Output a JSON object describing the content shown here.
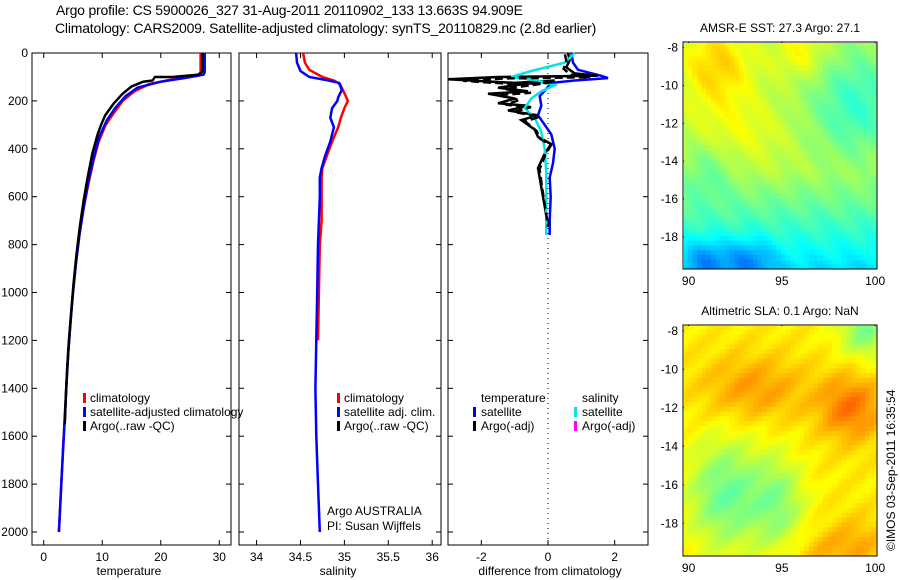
{
  "header": {
    "line1": "Argo profile: CS 5900026_327 31-Aug-2011 20110902_133 13.663S 94.909E",
    "line2": "Climatology: CARS2009. Satellite-adjusted climatology: synTS_20110829.nc (2.8d earlier)"
  },
  "stamp": "©IMOS 03-Sep-2011 16:35:54",
  "colors": {
    "climatology": "#ff0000",
    "satellite": "#0000ff",
    "argo": "#000000",
    "salinity_satellite": "#00e5e5",
    "salinity_argo": "#ff00ff"
  },
  "chart_data": [
    {
      "type": "line",
      "name": "temperature-profile",
      "xlabel": "temperature",
      "ylabel": "",
      "xlim": [
        -2,
        32
      ],
      "ylim": [
        2050,
        0
      ],
      "xticks": [
        0,
        10,
        20,
        30
      ],
      "yticks": [
        0,
        200,
        400,
        600,
        800,
        1000,
        1200,
        1400,
        1600,
        1800,
        2000
      ],
      "legend": {
        "position": "lower-middle",
        "entries": [
          "climatology",
          "satellite-adjusted climatology",
          "Argo(..raw -QC)"
        ]
      },
      "series": [
        {
          "name": "climatology",
          "color_key": "climatology",
          "points": [
            [
              26.8,
              0
            ],
            [
              26.8,
              80
            ],
            [
              26.2,
              95
            ],
            [
              22,
              110
            ],
            [
              18,
              130
            ],
            [
              15.5,
              160
            ],
            [
              13.5,
              200
            ],
            [
              12,
              250
            ],
            [
              10.6,
              300
            ],
            [
              9.4,
              370
            ],
            [
              8.5,
              450
            ],
            [
              7.6,
              550
            ],
            [
              6.8,
              650
            ],
            [
              6.1,
              760
            ],
            [
              5.5,
              880
            ],
            [
              5,
              1000
            ],
            [
              4.6,
              1120
            ],
            [
              4.2,
              1250
            ],
            [
              3.9,
              1380
            ],
            [
              3.6,
              1520
            ],
            [
              3.3,
              1660
            ],
            [
              3.0,
              1800
            ],
            [
              2.8,
              1900
            ],
            [
              2.6,
              2000
            ]
          ]
        },
        {
          "name": "satellite-adjusted climatology",
          "color_key": "satellite",
          "points": [
            [
              27.5,
              0
            ],
            [
              27.5,
              80
            ],
            [
              27.3,
              90
            ],
            [
              24,
              105
            ],
            [
              20,
              120
            ],
            [
              16,
              145
            ],
            [
              14,
              180
            ],
            [
              12.2,
              230
            ],
            [
              10.8,
              280
            ],
            [
              9.5,
              350
            ],
            [
              8.5,
              440
            ],
            [
              7.6,
              540
            ],
            [
              6.8,
              650
            ],
            [
              6.1,
              760
            ],
            [
              5.5,
              880
            ],
            [
              5,
              1000
            ],
            [
              4.6,
              1120
            ],
            [
              4.2,
              1250
            ],
            [
              3.9,
              1380
            ],
            [
              3.6,
              1520
            ],
            [
              3.3,
              1660
            ],
            [
              3.0,
              1800
            ],
            [
              2.8,
              1900
            ],
            [
              2.6,
              2000
            ]
          ]
        },
        {
          "name": "Argo(..raw -QC)",
          "color_key": "argo",
          "points": [
            [
              27.1,
              0
            ],
            [
              27.1,
              78
            ],
            [
              26.5,
              90
            ],
            [
              22,
              100
            ],
            [
              19,
              100
            ],
            [
              18.6,
              115
            ],
            [
              17,
              120
            ],
            [
              15,
              140
            ],
            [
              13.5,
              170
            ],
            [
              12,
              210
            ],
            [
              10.5,
              260
            ],
            [
              9.8,
              300
            ],
            [
              9.2,
              340
            ],
            [
              8.3,
              420
            ],
            [
              7.5,
              520
            ],
            [
              6.8,
              620
            ],
            [
              6.2,
              720
            ],
            [
              5.6,
              840
            ],
            [
              5.1,
              960
            ],
            [
              4.7,
              1080
            ],
            [
              4.3,
              1200
            ],
            [
              4,
              1320
            ],
            [
              3.8,
              1430
            ],
            [
              3.6,
              1550
            ]
          ]
        }
      ]
    },
    {
      "type": "line",
      "name": "salinity-profile",
      "xlabel": "salinity",
      "xlim": [
        33.8,
        36.1
      ],
      "ylim": [
        2050,
        0
      ],
      "xticks": [
        34,
        34.5,
        35,
        35.5,
        36
      ],
      "legend": {
        "position": "lower-middle",
        "entries": [
          "climatology",
          "satellite adj. clim.",
          "Argo(..raw -QC)"
        ]
      },
      "annotation": [
        "Argo AUSTRALIA",
        "PI: Susan Wijffels"
      ],
      "series": [
        {
          "name": "climatology",
          "color_key": "climatology",
          "points": [
            [
              34.53,
              0
            ],
            [
              34.55,
              40
            ],
            [
              34.6,
              70
            ],
            [
              34.75,
              100
            ],
            [
              34.88,
              115
            ],
            [
              34.95,
              130
            ],
            [
              34.99,
              160
            ],
            [
              35.04,
              200
            ],
            [
              35.0,
              230
            ],
            [
              34.96,
              270
            ],
            [
              34.93,
              310
            ],
            [
              34.86,
              370
            ],
            [
              34.8,
              430
            ],
            [
              34.75,
              480
            ],
            [
              34.74,
              520
            ],
            [
              34.74,
              600
            ],
            [
              34.74,
              700
            ],
            [
              34.72,
              800
            ],
            [
              34.71,
              1000
            ],
            [
              34.7,
              1200
            ]
          ]
        },
        {
          "name": "satellite adj. clim.",
          "color_key": "satellite",
          "points": [
            [
              34.45,
              0
            ],
            [
              34.46,
              40
            ],
            [
              34.5,
              75
            ],
            [
              34.6,
              100
            ],
            [
              34.82,
              115
            ],
            [
              34.94,
              125
            ],
            [
              34.97,
              155
            ],
            [
              34.93,
              185
            ],
            [
              34.92,
              200
            ],
            [
              34.86,
              230
            ],
            [
              34.84,
              270
            ],
            [
              34.88,
              310
            ],
            [
              34.84,
              370
            ],
            [
              34.78,
              430
            ],
            [
              34.74,
              480
            ],
            [
              34.72,
              520
            ],
            [
              34.72,
              600
            ],
            [
              34.71,
              700
            ],
            [
              34.7,
              800
            ],
            [
              34.69,
              1000
            ],
            [
              34.68,
              1200
            ],
            [
              34.67,
              1400
            ],
            [
              34.68,
              1600
            ],
            [
              34.7,
              1800
            ],
            [
              34.72,
              2000
            ]
          ]
        }
      ]
    },
    {
      "type": "line",
      "name": "difference-from-climatology",
      "xlabel": "difference from climatology",
      "xlim": [
        -3,
        3
      ],
      "ylim": [
        2050,
        0
      ],
      "xticks": [
        -2,
        0,
        2
      ],
      "legend": {
        "position": "lower-middle",
        "groups": [
          {
            "title": "temperature",
            "entries": [
              "satellite",
              "Argo(-adj)"
            ]
          },
          {
            "title": "salinity",
            "entries": [
              "satellite",
              "Argo(-adj)"
            ]
          }
        ]
      },
      "series": [
        {
          "name": "temperature satellite",
          "color_key": "satellite",
          "points": [
            [
              0.7,
              0
            ],
            [
              0.75,
              40
            ],
            [
              0.9,
              70
            ],
            [
              1.6,
              95
            ],
            [
              1.8,
              105
            ],
            [
              0.8,
              115
            ],
            [
              0.1,
              125
            ],
            [
              -0.05,
              150
            ],
            [
              -0.25,
              180
            ],
            [
              -0.2,
              220
            ],
            [
              -0.3,
              260
            ],
            [
              -0.1,
              300
            ],
            [
              0.1,
              340
            ],
            [
              0.2,
              400
            ],
            [
              0.15,
              460
            ],
            [
              0.05,
              520
            ],
            [
              0.08,
              600
            ],
            [
              0.05,
              700
            ],
            [
              0.05,
              760
            ]
          ]
        },
        {
          "name": "temperature Argo(-adj)",
          "color_key": "argo",
          "points": [
            [
              0.6,
              0
            ],
            [
              0.65,
              30
            ],
            [
              0.55,
              60
            ],
            [
              0.8,
              85
            ],
            [
              1.5,
              95
            ],
            [
              -1.5,
              100
            ],
            [
              -3,
              110
            ],
            [
              -1,
              125
            ],
            [
              0.2,
              115
            ],
            [
              -1,
              135
            ],
            [
              -1.5,
              145
            ],
            [
              -0.6,
              160
            ],
            [
              -1.8,
              170
            ],
            [
              -1.0,
              190
            ],
            [
              -1.5,
              210
            ],
            [
              -0.6,
              220
            ],
            [
              -1.2,
              240
            ],
            [
              -0.3,
              260
            ],
            [
              -0.8,
              280
            ],
            [
              -0.4,
              320
            ],
            [
              -0.3,
              350
            ],
            [
              0.1,
              380
            ],
            [
              -0.1,
              420
            ],
            [
              -0.3,
              480
            ],
            [
              -0.2,
              560
            ],
            [
              -0.1,
              640
            ],
            [
              0,
              720
            ]
          ]
        },
        {
          "name": "salinity satellite",
          "color_key": "salinity_satellite",
          "points": [
            [
              0.8,
              0
            ],
            [
              0.5,
              40
            ],
            [
              -0.5,
              75
            ],
            [
              -1.1,
              100
            ],
            [
              -0.3,
              115
            ],
            [
              0.2,
              135
            ],
            [
              -0.2,
              160
            ],
            [
              -0.5,
              190
            ],
            [
              -0.7,
              230
            ],
            [
              -0.4,
              270
            ],
            [
              -0.2,
              330
            ],
            [
              -0.1,
              400
            ],
            [
              -0.05,
              500
            ],
            [
              -0.05,
              600
            ],
            [
              -0.05,
              760
            ]
          ]
        }
      ]
    },
    {
      "type": "heatmap",
      "name": "sst-map",
      "title": "AMSR-E SST: 27.3 Argo: 27.1",
      "xlim": [
        89.7,
        100.1
      ],
      "ylim": [
        -19.7,
        -7.7
      ],
      "xticks": [
        90,
        95,
        100
      ],
      "yticks": [
        -8,
        -10,
        -12,
        -14,
        -16,
        -18
      ],
      "profile_marker": {
        "lon": 94.909,
        "lat": -13.663
      },
      "colormap": "jet"
    },
    {
      "type": "heatmap",
      "name": "sla-map",
      "title": "Altimetric SLA: 0.1 Argo: NaN",
      "xlim": [
        89.7,
        100.1
      ],
      "ylim": [
        -19.7,
        -7.7
      ],
      "xticks": [
        90,
        95,
        100
      ],
      "yticks": [
        -8,
        -10,
        -12,
        -14,
        -16,
        -18
      ],
      "profile_marker": {
        "lon": 94.909,
        "lat": -13.663
      },
      "colormap": "jet"
    }
  ]
}
